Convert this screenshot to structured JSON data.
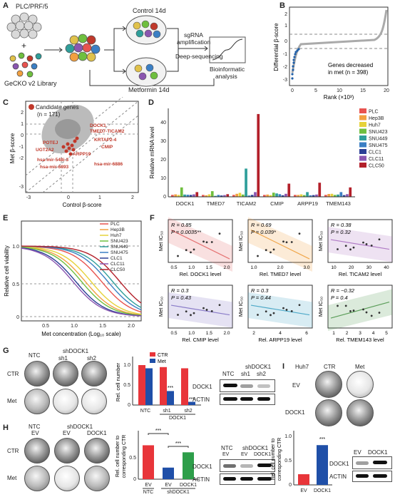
{
  "panels": {
    "A": "A",
    "B": "B",
    "C": "C",
    "D": "D",
    "E": "E",
    "F": "F",
    "G": "G",
    "H": "H",
    "I": "I"
  },
  "A": {
    "cell_line": "PLC/PRF/5",
    "library": "GeCKO v2 Library",
    "control": "Control 14d",
    "metformin": "Metformin 14d",
    "step1": "sgRNA",
    "step2": "amplification",
    "step3": "Deep-sequencing",
    "step4": "Bioinformatic",
    "step5": "analysis",
    "plus": "+"
  },
  "B": {
    "ylabel": "Differential β-score",
    "xlabel": "Rank (×10³)",
    "note1": "Genes decreased",
    "note2": "in met (n = 398)",
    "xticks": [
      "0",
      "5",
      "10",
      "15",
      "20"
    ],
    "yticks": [
      "2",
      "1",
      "0",
      "-1",
      "-2",
      "-3"
    ]
  },
  "C": {
    "legend": "Candidate genes",
    "legend_n": "(n = 171)",
    "ylabel": "Met β-score",
    "xlabel": "Control β-score",
    "xticks": [
      "-3",
      "0",
      "1",
      "2"
    ],
    "yticks": [
      "2",
      "1",
      "0",
      "-1",
      "-2",
      "-3"
    ],
    "genes": [
      "DOCK1",
      "TMED7-TICAM2",
      "KRTAP2-4",
      "POTEJ",
      "UGT2A2",
      "ARPP19",
      "CMIP",
      "hsa-mir-548i-3",
      "hsa-mir-6893",
      "hsa-mir-6886"
    ]
  },
  "D": {
    "ylabel": "Relative mRNA level",
    "yticks": [
      "0",
      "10",
      "20",
      "30",
      "40"
    ],
    "genes": [
      "DOCK1",
      "TMED7",
      "TICAM2",
      "CMIP",
      "ARPP19",
      "TMEM143"
    ],
    "cells": [
      "PLC",
      "Hep3B",
      "Huh7",
      "SNU423",
      "SNU449",
      "SNU475",
      "CLC1",
      "CLC11",
      "CLC50"
    ],
    "colors": [
      "#e8534f",
      "#f2a040",
      "#e6d23a",
      "#6fbf3f",
      "#2f9e9a",
      "#3b7fc4",
      "#2b3f95",
      "#8a56b0",
      "#b3202a"
    ]
  },
  "chart_data": {
    "type": "bar",
    "categories": [
      "DOCK1",
      "TMED7",
      "TICAM2",
      "CMIP",
      "ARPP19",
      "TMEM143"
    ],
    "ylim": [
      0,
      47
    ],
    "ylabel": "Relative mRNA level",
    "series": [
      {
        "name": "PLC",
        "values": [
          1,
          1,
          1,
          1,
          1,
          1
        ]
      },
      {
        "name": "Hep3B",
        "values": [
          1.3,
          0.8,
          1.6,
          1.2,
          1.0,
          1.5
        ]
      },
      {
        "name": "Huh7",
        "values": [
          1.0,
          1.3,
          2.1,
          0.9,
          1.3,
          1.6
        ]
      },
      {
        "name": "SNU423",
        "values": [
          5.0,
          3.0,
          1.2,
          2.2,
          0.9,
          1.0
        ]
      },
      {
        "name": "SNU449",
        "values": [
          1.2,
          0.5,
          15.0,
          1.8,
          2.5,
          1.2
        ]
      },
      {
        "name": "SNU475",
        "values": [
          1.1,
          1.0,
          0.7,
          1.4,
          0.8,
          2.5
        ]
      },
      {
        "name": "CLC1",
        "values": [
          1.0,
          0.7,
          1.0,
          0.8,
          0.9,
          0.9
        ]
      },
      {
        "name": "CLC11",
        "values": [
          1.3,
          0.9,
          2.5,
          1.6,
          1.2,
          1.4
        ]
      },
      {
        "name": "CLC50",
        "values": [
          2.5,
          1.4,
          44.0,
          7.0,
          7.5,
          5.0
        ]
      }
    ]
  },
  "E": {
    "ylabel": "Relative cell viability",
    "xlabel": "Met concentration (Log₁₀ scale)",
    "xticks": [
      "0.5",
      "1.0",
      "1.5",
      "2.0"
    ],
    "yticks": [
      "1.0",
      "0.5",
      "0"
    ],
    "legend": [
      "PLC",
      "Hep3B",
      "Huh7",
      "SNU423",
      "SNU449",
      "SNU475",
      "CLC1",
      "CLC11",
      "CLC50"
    ],
    "colors": [
      "#e8534f",
      "#f2a040",
      "#e6d23a",
      "#6fbf3f",
      "#2f9e9a",
      "#3b7fc4",
      "#2b3f95",
      "#8a56b0",
      "#b3202a"
    ],
    "ic50": [
      1.32,
      0.98,
      1.1,
      0.9,
      1.55,
      1.45,
      0.78,
      0.72,
      1.7
    ]
  },
  "F": {
    "ylabel": "Met IC₅₀",
    "plots": [
      {
        "r": "R = 0.85",
        "p": "P = 0.0035**",
        "x": "Rel. DOCK1 level",
        "xt": [
          "0.5",
          "1.0",
          "1.5",
          "2.0"
        ],
        "color": "#e57373"
      },
      {
        "r": "R = 0.69",
        "p": "P = 0.039*",
        "x": "Rel. TMED7 level",
        "xt": [
          "1.0",
          "2.0",
          "3.0"
        ],
        "color": "#f0a64a"
      },
      {
        "r": "R = 0.38",
        "p": "P = 0.32",
        "x": "Rel. TICAM2 level",
        "xt": [
          "10",
          "20",
          "30",
          "40"
        ],
        "color": "#b07bc6"
      },
      {
        "r": "R = 0.3",
        "p": "P = 0.43",
        "x": "Rel. CMIP level",
        "xt": [
          "0.5",
          "1.0",
          "1.5",
          "2.0"
        ],
        "color": "#8a7cc9"
      },
      {
        "r": "R = 0.3",
        "p": "P = 0.44",
        "x": "Rel. ARPP19 level",
        "xt": [
          "2",
          "4",
          "6"
        ],
        "color": "#4da9c8"
      },
      {
        "r": "R = −0.32",
        "p": "P = 0.4",
        "x": "Rel. TMEM143 level",
        "xt": [
          "1",
          "2",
          "3",
          "4",
          "5"
        ],
        "color": "#5c9e5a"
      }
    ]
  },
  "G": {
    "cols": [
      "NTC",
      "sh1",
      "sh2"
    ],
    "group": "shDOCK1",
    "rows": [
      "CTR",
      "Met"
    ],
    "ylabel": "Rel. cell number",
    "legend": [
      "CTR",
      "Met"
    ],
    "x": [
      "NTC",
      "sh1",
      "sh2"
    ],
    "xgroup": "DOCK1",
    "ctr": [
      1.0,
      0.95,
      0.92
    ],
    "met": [
      0.92,
      0.35,
      0.08
    ],
    "yticks": [
      "0",
      "0.5",
      "1.0"
    ],
    "sig": "***",
    "blot_header": [
      "NTC",
      "sh1",
      "sh2"
    ],
    "blot_group": "shDOCK1",
    "blot_rows": [
      "DOCK1",
      "ACTIN"
    ]
  },
  "H": {
    "col1": "NTC",
    "col1b": "EV",
    "group": "shDOCK1",
    "cols": [
      "EV",
      "DOCK1"
    ],
    "rows": [
      "CTR",
      "Met"
    ],
    "ylabel1": "Rel. cell number to",
    "ylabel2": "corresponding CTR",
    "x": [
      "EV",
      "EV",
      "DOCK1"
    ],
    "x2": [
      "NTC",
      "shDOCK1"
    ],
    "values": [
      0.82,
      0.28,
      0.65
    ],
    "yticks": [
      "0",
      "0.5"
    ],
    "sig": "***",
    "blot_header": [
      "NTC",
      "shDOCK1"
    ],
    "blot_sub": [
      "EV",
      "EV",
      "DOCK1"
    ],
    "blot_rows": [
      "DOCK1",
      "ACTIN"
    ]
  },
  "I": {
    "cell": "Huh7",
    "cols": [
      "CTR",
      "Met"
    ],
    "rows": [
      "EV",
      "DOCK1"
    ],
    "ylabel1": "Rel. cell number to",
    "ylabel2": "corresponding CTR",
    "x": [
      "EV",
      "DOCK1"
    ],
    "values": [
      0.22,
      0.82
    ],
    "yticks": [
      "0",
      "0.5",
      "1.0"
    ],
    "sig": "***",
    "blot_header": [
      "EV",
      "DOCK1"
    ],
    "blot_rows": [
      "DOCK1",
      "ACTIN"
    ]
  }
}
